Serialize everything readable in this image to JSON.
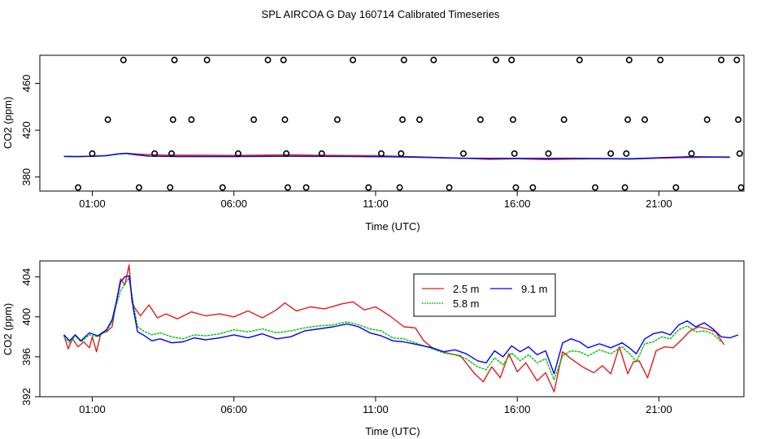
{
  "figure": {
    "title": "SPL AIRCOA G  Day 160714  Calibrated Timeseries"
  },
  "colors": {
    "s25": "#e31a1c",
    "s58": "#00c000",
    "s91": "#0000ff",
    "axis": "#000000"
  },
  "chart_data": [
    {
      "type": "scatter",
      "title": "",
      "xlabel": "Time (UTC)",
      "ylabel": "CO2 (ppm)",
      "xlim": [
        -0.85,
        24.0
      ],
      "ylim": [
        368,
        484
      ],
      "xticks": [
        1,
        6,
        11,
        16,
        21
      ],
      "xtick_labels": [
        "01:00",
        "06:00",
        "11:00",
        "16:00",
        "21:00"
      ],
      "yticks": [
        380,
        420,
        460
      ],
      "ytick_labels": [
        "380",
        "420",
        "460"
      ],
      "points": [
        {
          "x": 0.5,
          "y": 371
        },
        {
          "x": 1.0,
          "y": 400
        },
        {
          "x": 1.55,
          "y": 429
        },
        {
          "x": 2.1,
          "y": 480
        },
        {
          "x": 2.65,
          "y": 371
        },
        {
          "x": 3.2,
          "y": 400
        },
        {
          "x": 3.75,
          "y": 371
        },
        {
          "x": 3.8,
          "y": 400
        },
        {
          "x": 3.85,
          "y": 429
        },
        {
          "x": 3.9,
          "y": 480
        },
        {
          "x": 4.5,
          "y": 429
        },
        {
          "x": 5.05,
          "y": 480
        },
        {
          "x": 5.6,
          "y": 371
        },
        {
          "x": 6.15,
          "y": 400
        },
        {
          "x": 6.7,
          "y": 429
        },
        {
          "x": 7.2,
          "y": 480
        },
        {
          "x": 7.75,
          "y": 480
        },
        {
          "x": 7.8,
          "y": 429
        },
        {
          "x": 7.85,
          "y": 400
        },
        {
          "x": 7.9,
          "y": 371
        },
        {
          "x": 8.55,
          "y": 371
        },
        {
          "x": 9.1,
          "y": 400
        },
        {
          "x": 9.65,
          "y": 429
        },
        {
          "x": 10.2,
          "y": 480
        },
        {
          "x": 10.75,
          "y": 371
        },
        {
          "x": 11.2,
          "y": 400
        },
        {
          "x": 11.85,
          "y": 371
        },
        {
          "x": 11.9,
          "y": 400
        },
        {
          "x": 11.95,
          "y": 429
        },
        {
          "x": 12.0,
          "y": 480
        },
        {
          "x": 12.55,
          "y": 429
        },
        {
          "x": 13.05,
          "y": 480
        },
        {
          "x": 13.6,
          "y": 371
        },
        {
          "x": 14.1,
          "y": 400
        },
        {
          "x": 14.7,
          "y": 429
        },
        {
          "x": 15.25,
          "y": 480
        },
        {
          "x": 15.8,
          "y": 480
        },
        {
          "x": 15.85,
          "y": 429
        },
        {
          "x": 15.9,
          "y": 400
        },
        {
          "x": 15.95,
          "y": 371
        },
        {
          "x": 16.55,
          "y": 371
        },
        {
          "x": 17.1,
          "y": 400
        },
        {
          "x": 17.65,
          "y": 429
        },
        {
          "x": 18.2,
          "y": 480
        },
        {
          "x": 18.75,
          "y": 371
        },
        {
          "x": 19.3,
          "y": 400
        },
        {
          "x": 19.8,
          "y": 371
        },
        {
          "x": 19.85,
          "y": 400
        },
        {
          "x": 19.9,
          "y": 429
        },
        {
          "x": 19.95,
          "y": 480
        },
        {
          "x": 20.5,
          "y": 429
        },
        {
          "x": 21.05,
          "y": 480
        },
        {
          "x": 21.6,
          "y": 371
        },
        {
          "x": 22.15,
          "y": 400
        },
        {
          "x": 22.7,
          "y": 429
        },
        {
          "x": 23.2,
          "y": 480
        },
        {
          "x": 23.75,
          "y": 480
        },
        {
          "x": 23.8,
          "y": 429
        },
        {
          "x": 23.85,
          "y": 400
        },
        {
          "x": 23.9,
          "y": 371
        }
      ],
      "series": [
        {
          "name": "2.5 m",
          "color": "#e31a1c",
          "x": [
            0,
            0.5,
            1,
            1.5,
            1.9,
            2.2,
            2.6,
            3,
            3.5,
            4,
            5,
            6,
            7,
            8,
            9,
            10,
            11,
            12,
            13,
            14,
            15,
            16,
            17,
            18,
            19,
            20,
            21,
            22,
            23,
            23.5
          ],
          "y": [
            397.6,
            397.4,
            397.7,
            398.3,
            399.8,
            400.3,
            399.6,
            399.1,
            398.8,
            398.7,
            398.6,
            398.4,
            398.7,
            398.9,
            398.6,
            398.4,
            398.2,
            397.6,
            396.8,
            396.2,
            395.1,
            395.6,
            394.9,
            395.3,
            395.6,
            395.3,
            396.1,
            396.6,
            397.0,
            396.7
          ]
        },
        {
          "name": "5.8 m",
          "color": "#00c000",
          "x": [
            0,
            0.5,
            1,
            1.5,
            1.9,
            2.2,
            2.6,
            3,
            4,
            6,
            8,
            10,
            12,
            14,
            16,
            18,
            20,
            22,
            23.5
          ],
          "y": [
            397.6,
            397.4,
            397.6,
            398.1,
            399.6,
            400.2,
            399.0,
            397.9,
            397.6,
            397.6,
            397.9,
            397.8,
            397.2,
            396.1,
            395.7,
            395.8,
            395.7,
            397.2,
            396.9
          ]
        },
        {
          "name": "9.1 m",
          "color": "#0000ff",
          "x": [
            0,
            0.5,
            1,
            1.5,
            1.9,
            2.2,
            2.6,
            3,
            4,
            6,
            8,
            10,
            12,
            14,
            16,
            18,
            20,
            22,
            23.5
          ],
          "y": [
            397.6,
            397.5,
            397.7,
            398.3,
            399.7,
            400.1,
            398.8,
            397.8,
            397.5,
            397.5,
            397.7,
            397.6,
            397.1,
            396.0,
            395.9,
            396.0,
            395.6,
            397.3,
            397.1
          ]
        }
      ]
    },
    {
      "type": "line",
      "title": "",
      "xlabel": "Time (UTC)",
      "ylabel": "CO2 (ppm)",
      "xlim": [
        -0.85,
        24.0
      ],
      "ylim": [
        392,
        405.6
      ],
      "xticks": [
        1,
        6,
        11,
        16,
        21
      ],
      "xtick_labels": [
        "01:00",
        "06:00",
        "11:00",
        "16:00",
        "21:00"
      ],
      "yticks": [
        392,
        396,
        400,
        404
      ],
      "ytick_labels": [
        "392",
        "396",
        "400",
        "404"
      ],
      "legend": [
        "2.5 m",
        "9.1 m",
        "5.8 m"
      ],
      "legend_position": "top-center",
      "series": [
        {
          "name": "2.5 m",
          "color": "#e31a1c",
          "x": [
            0,
            0.15,
            0.3,
            0.5,
            0.7,
            0.9,
            1.0,
            1.15,
            1.3,
            1.5,
            1.7,
            1.85,
            2.0,
            2.15,
            2.3,
            2.4,
            2.5,
            2.7,
            3.0,
            3.3,
            3.6,
            4.0,
            4.5,
            5.0,
            5.5,
            6.0,
            6.5,
            7.0,
            7.5,
            7.8,
            8.2,
            8.7,
            9.2,
            9.8,
            10.2,
            10.6,
            11.0,
            11.5,
            12.0,
            12.4,
            12.7,
            13.0,
            13.5,
            14.0,
            14.5,
            14.8,
            15.1,
            15.4,
            15.7,
            16.0,
            16.3,
            16.7,
            17.0,
            17.3,
            17.6,
            17.9,
            18.3,
            18.7,
            19.0,
            19.3,
            19.6,
            19.9,
            20.1,
            20.3,
            20.6,
            20.9,
            21.2,
            21.5,
            21.8,
            22.1,
            22.4,
            22.7,
            23.0,
            23.3
          ],
          "y": [
            398.2,
            396.8,
            397.8,
            397.0,
            397.5,
            396.9,
            398.0,
            396.5,
            398.3,
            398.5,
            399.0,
            401.5,
            403.8,
            403.2,
            405.2,
            401.5,
            400.9,
            400.1,
            401.2,
            399.9,
            400.3,
            399.8,
            400.5,
            400.1,
            400.3,
            400.0,
            400.6,
            399.9,
            400.7,
            401.4,
            400.6,
            401.0,
            400.8,
            401.3,
            401.5,
            400.7,
            401.0,
            400.1,
            399.0,
            398.9,
            397.6,
            396.9,
            396.4,
            396.1,
            394.3,
            393.5,
            395.0,
            393.9,
            396.3,
            394.5,
            395.4,
            393.6,
            394.4,
            392.5,
            396.5,
            395.8,
            395.0,
            394.4,
            395.1,
            394.3,
            397.0,
            394.3,
            395.5,
            395.6,
            393.9,
            396.6,
            397.0,
            396.9,
            397.7,
            398.6,
            399.0,
            398.8,
            398.5,
            397.2
          ]
        },
        {
          "name": "5.8 m",
          "color": "#00c000",
          "x": [
            0,
            0.2,
            0.4,
            0.6,
            0.9,
            1.2,
            1.5,
            1.7,
            1.85,
            2.0,
            2.15,
            2.3,
            2.45,
            2.6,
            2.8,
            3.1,
            3.4,
            3.8,
            4.2,
            4.6,
            5.0,
            5.5,
            6.0,
            6.5,
            7.0,
            7.5,
            8.0,
            8.5,
            9.0,
            9.5,
            10.0,
            10.4,
            10.8,
            11.2,
            11.6,
            12.0,
            12.5,
            13.0,
            13.4,
            13.8,
            14.2,
            14.6,
            14.9,
            15.2,
            15.5,
            15.8,
            16.1,
            16.4,
            16.7,
            17.0,
            17.3,
            17.6,
            17.9,
            18.2,
            18.5,
            18.9,
            19.3,
            19.7,
            20.0,
            20.2,
            20.5,
            20.8,
            21.1,
            21.4,
            21.7,
            22.0,
            22.3,
            22.6,
            22.9,
            23.2
          ],
          "y": [
            398.0,
            397.4,
            398.1,
            397.5,
            398.2,
            398.0,
            398.6,
            399.5,
            401.2,
            402.6,
            403.3,
            403.9,
            401.3,
            399.0,
            398.6,
            398.2,
            398.4,
            398.0,
            397.8,
            398.2,
            398.1,
            398.3,
            398.7,
            398.5,
            398.8,
            398.4,
            398.6,
            398.9,
            399.1,
            399.2,
            399.5,
            399.2,
            398.8,
            398.6,
            397.9,
            397.8,
            397.3,
            396.8,
            396.4,
            396.2,
            395.8,
            395.0,
            394.7,
            395.9,
            395.2,
            396.4,
            395.6,
            396.2,
            395.4,
            395.8,
            393.7,
            396.1,
            396.6,
            396.5,
            396.1,
            396.7,
            396.3,
            397.0,
            396.2,
            395.5,
            397.3,
            397.5,
            398.0,
            397.8,
            398.7,
            399.1,
            398.5,
            398.6,
            398.3,
            397.5
          ]
        },
        {
          "name": "9.1 m",
          "color": "#0000ff",
          "x": [
            0,
            0.2,
            0.4,
            0.6,
            0.9,
            1.2,
            1.5,
            1.7,
            1.85,
            2.0,
            2.15,
            2.3,
            2.45,
            2.6,
            2.8,
            3.1,
            3.4,
            3.8,
            4.2,
            4.6,
            5.0,
            5.5,
            6.0,
            6.5,
            7.0,
            7.5,
            8.0,
            8.5,
            9.0,
            9.5,
            10.0,
            10.4,
            10.8,
            11.2,
            11.6,
            12.0,
            12.5,
            13.0,
            13.4,
            13.8,
            14.2,
            14.6,
            14.9,
            15.2,
            15.5,
            15.8,
            16.1,
            16.4,
            16.7,
            17.0,
            17.3,
            17.6,
            17.9,
            18.2,
            18.5,
            18.9,
            19.3,
            19.7,
            20.0,
            20.2,
            20.5,
            20.8,
            21.1,
            21.4,
            21.7,
            22.0,
            22.3,
            22.6,
            22.9,
            23.2,
            23.5,
            23.8
          ],
          "y": [
            398.2,
            397.6,
            398.2,
            397.6,
            398.4,
            398.1,
            398.7,
            399.7,
            401.5,
            403.5,
            404.0,
            404.1,
            400.8,
            398.5,
            398.2,
            397.6,
            397.8,
            397.4,
            397.5,
            397.9,
            397.7,
            397.9,
            398.2,
            397.9,
            398.3,
            397.8,
            398.0,
            398.6,
            398.8,
            399.0,
            399.3,
            399.0,
            398.4,
            398.1,
            397.6,
            397.5,
            397.2,
            396.9,
            396.5,
            396.7,
            396.3,
            395.6,
            395.4,
            396.6,
            396.0,
            397.1,
            396.5,
            397.0,
            396.2,
            396.6,
            394.3,
            397.4,
            397.8,
            397.5,
            396.9,
            397.3,
            396.9,
            397.4,
            396.8,
            396.3,
            397.8,
            398.3,
            398.5,
            398.2,
            399.2,
            399.6,
            399.0,
            399.4,
            398.8,
            398.0,
            397.9,
            398.2
          ]
        }
      ]
    }
  ]
}
